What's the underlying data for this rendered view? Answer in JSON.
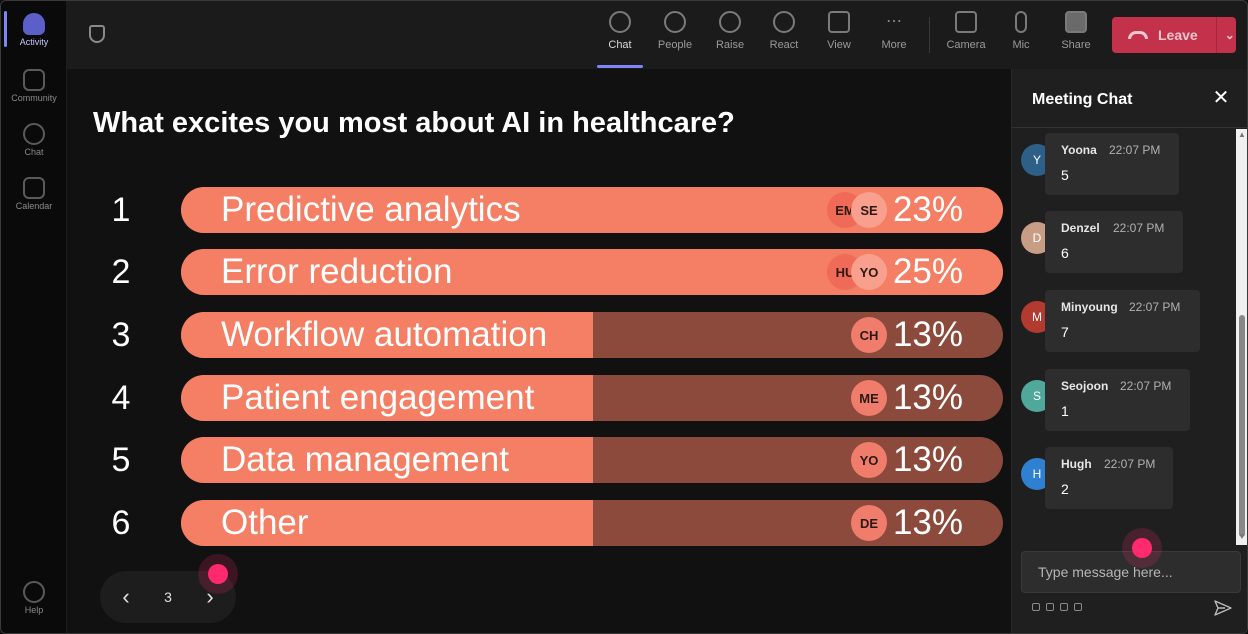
{
  "rail": {
    "items": [
      {
        "label": "Activity"
      },
      {
        "label": "Community"
      },
      {
        "label": "Chat"
      },
      {
        "label": "Calendar"
      }
    ],
    "help_label": "Help"
  },
  "toolbar": {
    "buttons": [
      {
        "label": "Chat",
        "icon": "chat-icon"
      },
      {
        "label": "People",
        "icon": "people-icon"
      },
      {
        "label": "Raise",
        "icon": "hand-icon"
      },
      {
        "label": "React",
        "icon": "smile-icon"
      },
      {
        "label": "View",
        "icon": "grid-icon"
      },
      {
        "label": "More",
        "icon": "more-icon"
      },
      {
        "label": "Camera",
        "icon": "camera-icon"
      },
      {
        "label": "Mic",
        "icon": "mic-icon"
      },
      {
        "label": "Share",
        "icon": "share-icon"
      }
    ],
    "leave_label": "Leave"
  },
  "poll": {
    "question": "What excites you most about AI in healthcare?",
    "options": [
      {
        "num": "1",
        "label": "Predictive analytics",
        "percent": 23,
        "percent_label": "23%",
        "avatars": [
          "EM",
          "SE"
        ]
      },
      {
        "num": "2",
        "label": "Error reduction",
        "percent": 25,
        "percent_label": "25%",
        "avatars": [
          "HU",
          "YO"
        ]
      },
      {
        "num": "3",
        "label": "Workflow automation",
        "percent": 13,
        "percent_label": "13%",
        "avatars": [
          "CH"
        ]
      },
      {
        "num": "4",
        "label": "Patient engagement",
        "percent": 13,
        "percent_label": "13%",
        "avatars": [
          "ME"
        ]
      },
      {
        "num": "5",
        "label": "Data management",
        "percent": 13,
        "percent_label": "13%",
        "avatars": [
          "YO"
        ]
      },
      {
        "num": "6",
        "label": "Other",
        "percent": 13,
        "percent_label": "13%",
        "avatars": [
          "DE"
        ]
      }
    ],
    "page": "3"
  },
  "chat": {
    "title": "Meeting Chat",
    "messages": [
      {
        "initial": "Y",
        "author": "Yoona",
        "time": "22:07 PM",
        "body": "5",
        "color": "#2e5f86"
      },
      {
        "initial": "D",
        "author": "Denzel",
        "time": "22:07 PM",
        "body": "6",
        "color": "#c79d86"
      },
      {
        "initial": "M",
        "author": "Minyoung",
        "time": "22:07 PM",
        "body": "7",
        "color": "#b23a2e"
      },
      {
        "initial": "S",
        "author": "Seojoon",
        "time": "22:07 PM",
        "body": "1",
        "color": "#4fa899"
      },
      {
        "initial": "H",
        "author": "Hugh",
        "time": "22:07 PM",
        "body": "2",
        "color": "#2f80d0"
      }
    ],
    "input_placeholder": "Type message here..."
  },
  "colors": {
    "bar_fill": "#f47f64",
    "bar_track": "#8b4a3b",
    "leave": "#c4314b",
    "accent": "#7f85f5"
  }
}
